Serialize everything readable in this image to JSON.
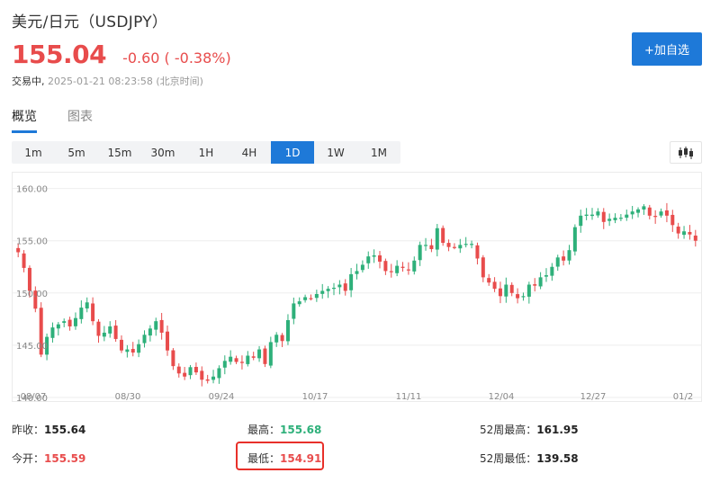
{
  "header": {
    "title": "美元/日元（USDJPY）",
    "price": "155.04",
    "change": "-0.60 ( -0.38%)",
    "status_label": "交易中,",
    "timestamp": "2025-01-21 08:23:58 (北京时间)",
    "add_button": "+加自选"
  },
  "tabs": [
    {
      "label": "概览",
      "active": true
    },
    {
      "label": "图表",
      "active": false
    }
  ],
  "periods": [
    "1m",
    "5m",
    "15m",
    "30m",
    "1H",
    "4H",
    "1D",
    "1W",
    "1M"
  ],
  "active_period": "1D",
  "chart_type_icon": "candlestick-icon",
  "colors": {
    "up": "#2eb07a",
    "down": "#e84c4c",
    "accent": "#1e79d8"
  },
  "chart_data": {
    "type": "candlestick",
    "ylim": [
      140,
      161
    ],
    "y_ticks": [
      "160.00",
      "155.00",
      "150.00",
      "145.00",
      "140.00"
    ],
    "x_ticks": [
      "08/07",
      "08/30",
      "09/24",
      "10/17",
      "11/11",
      "12/04",
      "12/27",
      "01/2"
    ],
    "grid": true,
    "approx_closes": [
      153.9,
      152.4,
      150.2,
      148.5,
      144.1,
      145.8,
      146.7,
      147.0,
      147.3,
      146.8,
      147.6,
      148.6,
      149.1,
      147.3,
      145.9,
      146.2,
      146.8,
      145.6,
      144.5,
      144.6,
      144.3,
      145.1,
      146.0,
      146.6,
      147.3,
      146.2,
      144.5,
      143.0,
      142.3,
      142.0,
      142.9,
      142.4,
      141.7,
      141.6,
      142.0,
      142.8,
      143.5,
      143.9,
      143.4,
      143.3,
      144.0,
      143.8,
      144.6,
      143.2,
      145.3,
      146.0,
      145.4,
      147.4,
      149.0,
      149.2,
      149.6,
      149.5,
      149.9,
      150.2,
      150.4,
      150.5,
      150.8,
      150.2,
      151.8,
      152.1,
      152.7,
      153.5,
      153.6,
      153.0,
      152.1,
      152.0,
      152.6,
      152.4,
      152.2,
      153.1,
      154.6,
      154.6,
      154.2,
      156.2,
      154.8,
      154.4,
      154.4,
      154.6,
      154.7,
      154.7,
      153.3,
      151.5,
      151.0,
      150.4,
      149.7,
      150.8,
      150.0,
      149.5,
      149.7,
      150.8,
      150.7,
      151.5,
      151.7,
      152.5,
      153.4,
      153.1,
      154.1,
      156.3,
      157.4,
      157.5,
      157.5,
      157.8,
      156.8,
      157.1,
      157.2,
      157.2,
      157.5,
      157.8,
      158.0,
      158.3,
      157.4,
      157.3,
      157.8,
      157.4,
      156.5,
      155.7,
      155.9,
      155.6,
      155.0
    ]
  },
  "stats": {
    "prev_close_label": "昨收：",
    "prev_close": "155.64",
    "open_label": "今开：",
    "open": "155.59",
    "high_label": "最高：",
    "high": "155.68",
    "low_label": "最低：",
    "low": "154.91",
    "week52_high_label": "52周最高：",
    "week52_high": "161.95",
    "week52_low_label": "52周最低：",
    "week52_low": "139.58"
  }
}
